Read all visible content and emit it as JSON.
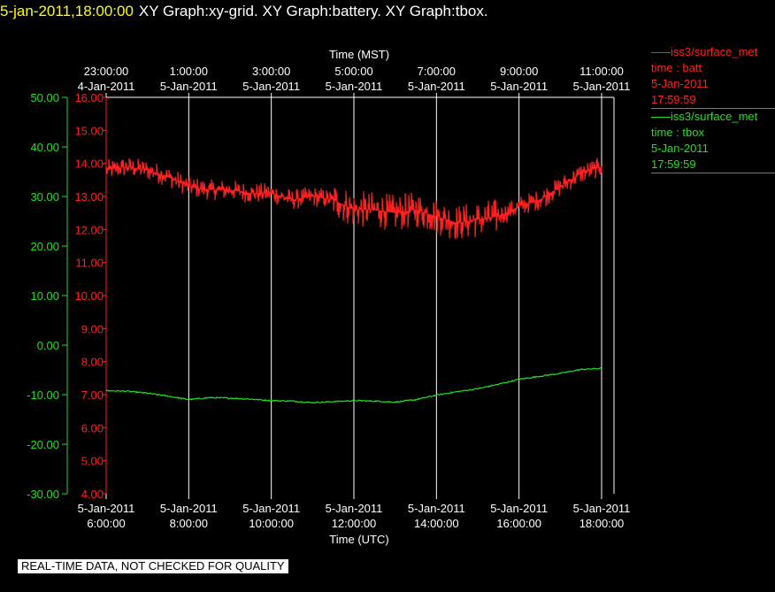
{
  "header": {
    "timestamp": "5-jan-2011,18:00:00",
    "graph_titles": "XY Graph:xy-grid.  XY Graph:battery.  XY Graph:tbox."
  },
  "legend": [
    {
      "name": "iss3/surface_met",
      "field": "time : batt",
      "date": "5-Jan-2011",
      "time": "17:59:59",
      "color": "#ff2020"
    },
    {
      "name": "iss3/surface_met",
      "field": "time : tbox",
      "date": "5-Jan-2011",
      "time": "17:59:59",
      "color": "#20e020"
    }
  ],
  "notice": "REAL-TIME DATA, NOT CHECKED FOR QUALITY",
  "chart_data": {
    "type": "line",
    "x_axis_bottom": {
      "label": "Time (UTC)",
      "ticks": [
        {
          "date": "5-Jan-2011",
          "time": "6:00:00"
        },
        {
          "date": "5-Jan-2011",
          "time": "8:00:00"
        },
        {
          "date": "5-Jan-2011",
          "time": "10:00:00"
        },
        {
          "date": "5-Jan-2011",
          "time": "12:00:00"
        },
        {
          "date": "5-Jan-2011",
          "time": "14:00:00"
        },
        {
          "date": "5-Jan-2011",
          "time": "16:00:00"
        },
        {
          "date": "5-Jan-2011",
          "time": "18:00:00"
        }
      ],
      "range": [
        "5-Jan-2011 6:00:00",
        "5-Jan-2011 18:00:00"
      ]
    },
    "x_axis_top": {
      "label": "Time (MST)",
      "ticks": [
        {
          "time": "23:00:00",
          "date": "4-Jan-2011"
        },
        {
          "time": "1:00:00",
          "date": "5-Jan-2011"
        },
        {
          "time": "3:00:00",
          "date": "5-Jan-2011"
        },
        {
          "time": "5:00:00",
          "date": "5-Jan-2011"
        },
        {
          "time": "7:00:00",
          "date": "5-Jan-2011"
        },
        {
          "time": "9:00:00",
          "date": "5-Jan-2011"
        },
        {
          "time": "11:00:00",
          "date": "5-Jan-2011"
        }
      ]
    },
    "y_axis_left_outer": {
      "color": "#20e020",
      "ticks": [
        "50.00",
        "40.00",
        "30.00",
        "20.00",
        "10.00",
        "0.00",
        "-10.00",
        "-20.00",
        "-30.00"
      ],
      "range": [
        -30,
        50
      ]
    },
    "y_axis_left_inner": {
      "color": "#ff2020",
      "ticks": [
        "16.00",
        "15.00",
        "14.00",
        "13.00",
        "12.00",
        "11.00",
        "10.00",
        "9.00",
        "8.00",
        "7.00",
        "6.00",
        "5.00",
        "4.00"
      ],
      "range": [
        4,
        16
      ]
    },
    "grid": "vertical lines at bottom ticks",
    "series": [
      {
        "name": "time : batt",
        "color": "#ff2020",
        "axis": "inner",
        "x_hours_utc": [
          6.0,
          6.5,
          7.0,
          7.5,
          8.0,
          8.5,
          9.0,
          9.5,
          10.0,
          10.5,
          11.0,
          11.5,
          12.0,
          12.5,
          13.0,
          13.5,
          14.0,
          14.5,
          15.0,
          15.5,
          16.0,
          16.5,
          17.0,
          17.5,
          18.0
        ],
        "values": [
          13.8,
          13.9,
          13.8,
          13.6,
          13.3,
          13.2,
          13.2,
          13.1,
          13.1,
          12.9,
          13.0,
          12.9,
          12.6,
          12.6,
          12.5,
          12.6,
          12.4,
          12.2,
          12.3,
          12.4,
          12.7,
          12.9,
          13.3,
          13.7,
          13.9
        ],
        "noise": 0.35
      },
      {
        "name": "time : tbox",
        "color": "#20e020",
        "axis": "outer",
        "x_hours_utc": [
          6.0,
          6.5,
          7.0,
          7.5,
          8.0,
          8.5,
          9.0,
          9.5,
          10.0,
          10.5,
          11.0,
          11.5,
          12.0,
          12.5,
          13.0,
          13.5,
          14.0,
          14.5,
          15.0,
          15.5,
          16.0,
          16.5,
          17.0,
          17.5,
          18.0
        ],
        "values": [
          -9.2,
          -9.3,
          -9.7,
          -10.3,
          -11.0,
          -10.6,
          -10.7,
          -10.9,
          -11.2,
          -11.3,
          -11.6,
          -11.4,
          -11.2,
          -11.3,
          -11.5,
          -11.0,
          -10.1,
          -9.4,
          -8.8,
          -7.9,
          -6.9,
          -6.3,
          -5.7,
          -4.9,
          -4.7
        ]
      }
    ]
  }
}
